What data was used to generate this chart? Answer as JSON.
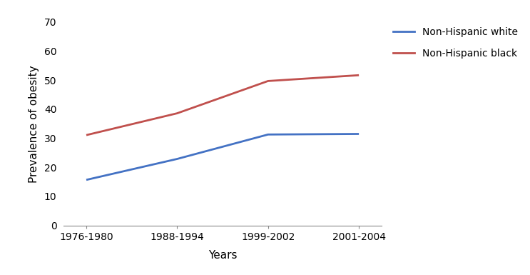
{
  "x_labels": [
    "1976-1980",
    "1988-1994",
    "1999-2002",
    "2001-2004"
  ],
  "x_positions": [
    0,
    1,
    2,
    3
  ],
  "series": [
    {
      "label": "Non-Hispanic white",
      "values": [
        15.7,
        22.9,
        31.3,
        31.5
      ],
      "color": "#4472C4",
      "linewidth": 2.0
    },
    {
      "label": "Non-Hispanic black",
      "values": [
        31.1,
        38.6,
        49.7,
        51.7
      ],
      "color": "#C0504D",
      "linewidth": 2.0
    }
  ],
  "ylim": [
    0,
    70
  ],
  "yticks": [
    0,
    10,
    20,
    30,
    40,
    50,
    60,
    70
  ],
  "ylabel": "Prevalence of obesity",
  "xlabel": "Years",
  "background_color": "#ffffff",
  "tick_fontsize": 10,
  "label_fontsize": 11,
  "legend_fontsize": 10
}
